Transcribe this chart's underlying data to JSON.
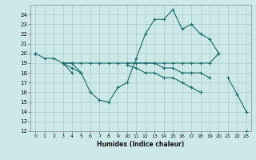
{
  "xlabel": "Humidex (Indice chaleur)",
  "x_hours": [
    0,
    1,
    2,
    3,
    4,
    5,
    6,
    7,
    8,
    9,
    10,
    11,
    12,
    13,
    14,
    15,
    16,
    17,
    18,
    19,
    20,
    21,
    22,
    23
  ],
  "line1": [
    20,
    19.5,
    19.5,
    19,
    19,
    19,
    19,
    19,
    19,
    19,
    19,
    19,
    19,
    19,
    19,
    19,
    19,
    19,
    19,
    19,
    20,
    null,
    null,
    null
  ],
  "line2": [
    20,
    null,
    null,
    19,
    19,
    18,
    16,
    15.2,
    15,
    16.5,
    17,
    19.5,
    22,
    23.5,
    23.5,
    24.5,
    22.5,
    23,
    22,
    21.5,
    20,
    null,
    null,
    null
  ],
  "line3": [
    20,
    null,
    null,
    19,
    18.5,
    18,
    null,
    null,
    null,
    null,
    19,
    19,
    19,
    19,
    18.5,
    18.5,
    18,
    18,
    18,
    17.5,
    null,
    17.5,
    15.8,
    14
  ],
  "line4": [
    20,
    null,
    null,
    19,
    18,
    null,
    null,
    null,
    null,
    null,
    18.8,
    18.5,
    18,
    18,
    17.5,
    17.5,
    17,
    16.5,
    16,
    null,
    null,
    null,
    null,
    12
  ],
  "bg_color": "#cce8e8",
  "grid_color": "#aacccc",
  "line_color": "#1a6b6b",
  "ylim": [
    12,
    25
  ],
  "yticks": [
    12,
    13,
    14,
    15,
    16,
    17,
    18,
    19,
    20,
    21,
    22,
    23,
    24
  ],
  "xticks": [
    0,
    1,
    2,
    3,
    4,
    5,
    6,
    7,
    8,
    9,
    10,
    11,
    12,
    13,
    14,
    15,
    16,
    17,
    18,
    19,
    20,
    21,
    22,
    23
  ],
  "figw": 3.2,
  "figh": 2.0,
  "dpi": 100
}
